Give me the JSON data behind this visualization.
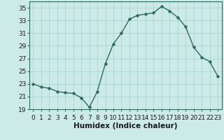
{
  "x": [
    0,
    1,
    2,
    3,
    4,
    5,
    6,
    7,
    8,
    9,
    10,
    11,
    12,
    13,
    14,
    15,
    16,
    17,
    18,
    19,
    20,
    21,
    22,
    23
  ],
  "y": [
    23.0,
    22.5,
    22.3,
    21.8,
    21.6,
    21.5,
    20.8,
    19.3,
    21.8,
    26.2,
    29.3,
    31.0,
    33.2,
    33.8,
    34.0,
    34.2,
    35.2,
    34.5,
    33.5,
    32.0,
    28.8,
    27.2,
    26.5,
    24.2
  ],
  "line_color": "#2e6b5e",
  "marker": "D",
  "marker_size": 2.5,
  "line_width": 1.0,
  "bg_color": "#cceae7",
  "grid_color": "#aad4d0",
  "xlabel": "Humidex (Indice chaleur)",
  "ylim": [
    19,
    36
  ],
  "xlim": [
    -0.5,
    23.5
  ],
  "yticks": [
    19,
    21,
    23,
    25,
    27,
    29,
    31,
    33,
    35
  ],
  "xtick_labels": [
    "0",
    "1",
    "2",
    "3",
    "4",
    "5",
    "6",
    "7",
    "8",
    "9",
    "10",
    "11",
    "12",
    "13",
    "14",
    "15",
    "16",
    "17",
    "18",
    "19",
    "20",
    "21",
    "22",
    "23"
  ],
  "label_fontsize": 7.5,
  "tick_fontsize": 6.5
}
